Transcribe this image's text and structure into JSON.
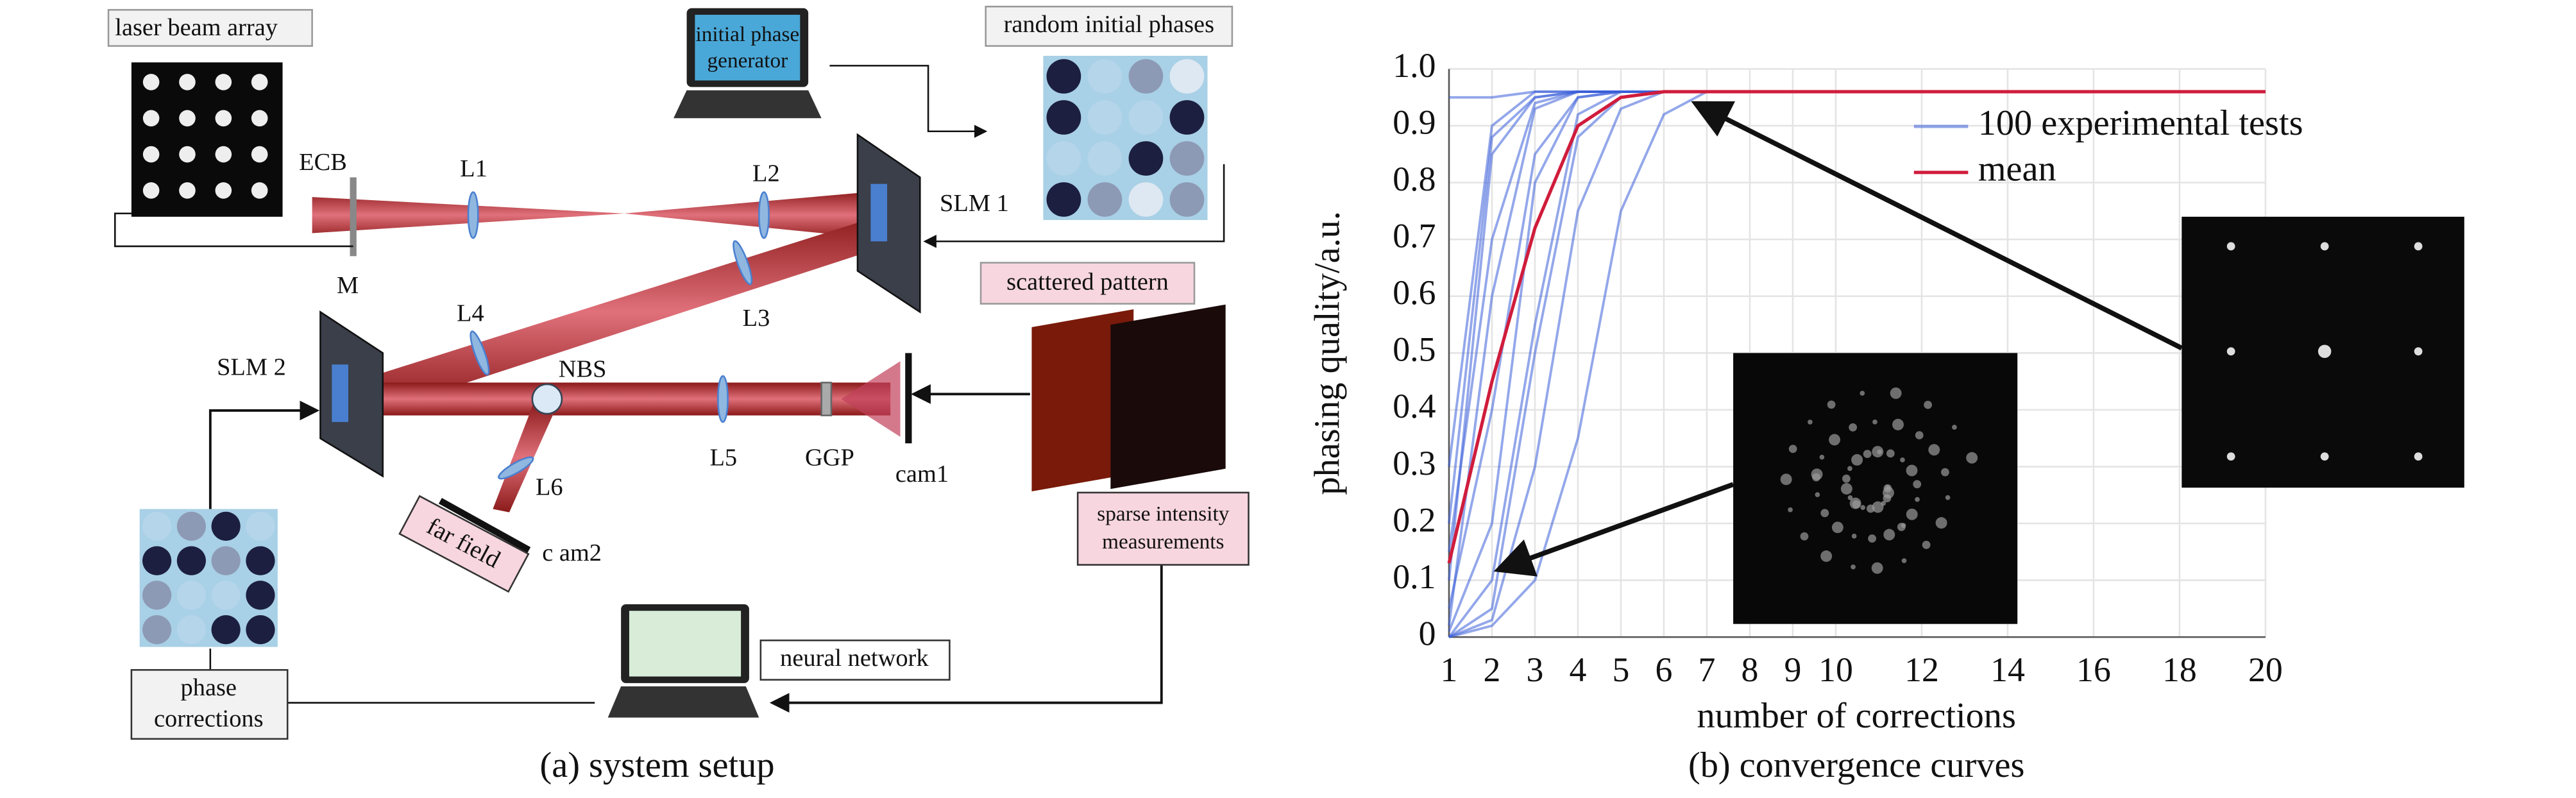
{
  "diagram": {
    "caption": "(a) system setup",
    "labels": {
      "laser_beam_array": "laser beam array",
      "initial_phase_generator": [
        "initial phase",
        "generator"
      ],
      "random_initial_phases": "random initial phases",
      "ecb": "ECB",
      "l1": "L1",
      "l2": "L2",
      "slm1": "SLM 1",
      "m": "M",
      "l4": "L4",
      "l3": "L3",
      "scattered_pattern": "scattered pattern",
      "slm2": "SLM 2",
      "nbs": "NBS",
      "l5": "L5",
      "ggp": "GGP",
      "cam1": "cam1",
      "l6": "L6",
      "far_field": "far field",
      "cam2": "c am2",
      "sparse_intensity": [
        "sparse intensity",
        "measurements"
      ],
      "neural_network": "neural network",
      "phase_corrections": [
        "phase",
        "corrections"
      ]
    }
  },
  "chart_data": {
    "type": "line",
    "caption": "(b) convergence curves",
    "x_label": "number of corrections",
    "y_label": "phasing quality/a.u.",
    "x": [
      1,
      2,
      3,
      4,
      5,
      6,
      7,
      8,
      9,
      10,
      11,
      12,
      13,
      14,
      15,
      16,
      17,
      18,
      19,
      20
    ],
    "xlim": [
      1,
      20
    ],
    "xticks": [
      1,
      2,
      3,
      4,
      5,
      6,
      7,
      8,
      9,
      10,
      12,
      14,
      16,
      18,
      20
    ],
    "ylim": [
      0,
      1
    ],
    "yticks": [
      0,
      0.1,
      0.2,
      0.3,
      0.4,
      0.5,
      0.6,
      0.7,
      0.8,
      0.9,
      {
        "value": 1,
        "label": "1.0"
      }
    ],
    "grid": true,
    "legend": "upper right",
    "series": [
      {
        "name": "100 experimental tests",
        "color": "#3a5fd9",
        "values": [
          [
            0.02,
            0.6,
            0.93,
            0.96,
            0.96,
            0.96,
            0.96,
            0.96,
            0.96,
            0.96,
            0.96,
            0.96,
            0.96,
            0.96,
            0.96,
            0.96,
            0.96,
            0.96,
            0.96,
            0.96
          ],
          [
            0.1,
            0.85,
            0.95,
            0.96,
            0.96,
            0.96,
            0.96,
            0.96,
            0.96,
            0.96,
            0.96,
            0.96,
            0.96,
            0.96,
            0.96,
            0.96,
            0.96,
            0.96,
            0.96,
            0.96
          ],
          [
            0.3,
            0.9,
            0.96,
            0.96,
            0.96,
            0.96,
            0.96,
            0.96,
            0.96,
            0.96,
            0.96,
            0.96,
            0.96,
            0.96,
            0.96,
            0.96,
            0.96,
            0.96,
            0.96,
            0.96
          ],
          [
            0.01,
            0.2,
            0.8,
            0.95,
            0.96,
            0.96,
            0.96,
            0.96,
            0.96,
            0.96,
            0.96,
            0.96,
            0.96,
            0.96,
            0.96,
            0.96,
            0.96,
            0.96,
            0.96,
            0.96
          ],
          [
            0.05,
            0.4,
            0.85,
            0.95,
            0.96,
            0.96,
            0.96,
            0.96,
            0.96,
            0.96,
            0.96,
            0.96,
            0.96,
            0.96,
            0.96,
            0.96,
            0.96,
            0.96,
            0.96,
            0.96
          ],
          [
            0.0,
            0.03,
            0.3,
            0.75,
            0.93,
            0.96,
            0.96,
            0.96,
            0.96,
            0.96,
            0.96,
            0.96,
            0.96,
            0.96,
            0.96,
            0.96,
            0.96,
            0.96,
            0.96,
            0.96
          ],
          [
            0.0,
            0.02,
            0.1,
            0.35,
            0.75,
            0.92,
            0.96,
            0.96,
            0.96,
            0.96,
            0.96,
            0.96,
            0.96,
            0.96,
            0.96,
            0.96,
            0.96,
            0.96,
            0.96,
            0.96
          ],
          [
            0.95,
            0.95,
            0.96,
            0.96,
            0.96,
            0.96,
            0.96,
            0.96,
            0.96,
            0.96,
            0.96,
            0.96,
            0.96,
            0.96,
            0.96,
            0.96,
            0.96,
            0.96,
            0.96,
            0.96
          ],
          [
            0.0,
            0.1,
            0.55,
            0.92,
            0.96,
            0.96,
            0.96,
            0.96,
            0.96,
            0.96,
            0.96,
            0.96,
            0.96,
            0.96,
            0.96,
            0.96,
            0.96,
            0.96,
            0.96,
            0.96
          ],
          [
            0.15,
            0.7,
            0.94,
            0.96,
            0.96,
            0.96,
            0.96,
            0.96,
            0.96,
            0.96,
            0.96,
            0.96,
            0.96,
            0.96,
            0.96,
            0.96,
            0.96,
            0.96,
            0.96,
            0.96
          ],
          [
            0.2,
            0.88,
            0.95,
            0.96,
            0.96,
            0.96,
            0.96,
            0.96,
            0.96,
            0.96,
            0.96,
            0.96,
            0.96,
            0.96,
            0.96,
            0.96,
            0.96,
            0.96,
            0.96,
            0.96
          ],
          [
            0.0,
            0.05,
            0.5,
            0.88,
            0.95,
            0.96,
            0.96,
            0.96,
            0.96,
            0.96,
            0.96,
            0.96,
            0.96,
            0.96,
            0.96,
            0.96,
            0.96,
            0.96,
            0.96,
            0.96
          ]
        ]
      },
      {
        "name": "mean",
        "color": "#d01c3c",
        "values": [
          0.13,
          0.45,
          0.72,
          0.9,
          0.95,
          0.96,
          0.96,
          0.96,
          0.96,
          0.96,
          0.96,
          0.96,
          0.96,
          0.96,
          0.96,
          0.96,
          0.96,
          0.96,
          0.96,
          0.96
        ]
      }
    ]
  }
}
